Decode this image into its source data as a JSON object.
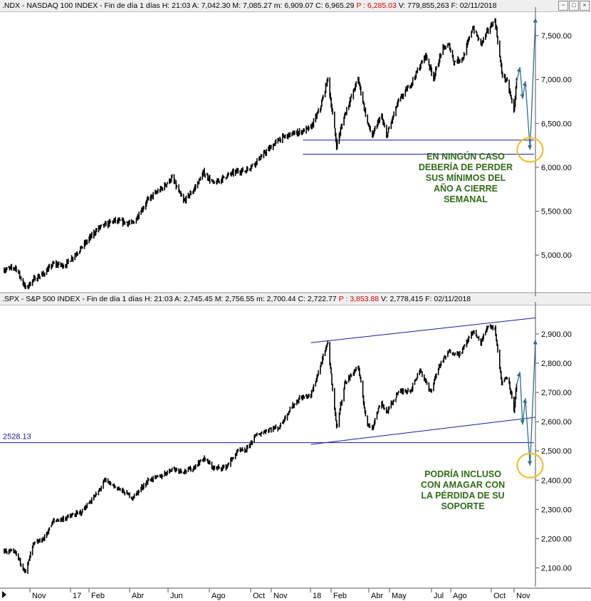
{
  "top_panel": {
    "header": {
      "symbol": ".NDX - NASDAQ 100 INDEX - Fin de día 1 días",
      "h": "H: 21:03",
      "a": "A: 7,042.30",
      "m": "M: 7,085.27",
      "low": "m: 6,909.07",
      "c": "C: 6,965.29",
      "p": "P : 6,285.03",
      "v": "V: 779,855,263",
      "f": "F: 02/11/2018"
    },
    "annotation": [
      "EN NINGÚN CASO",
      "DEBERÍA DE PERDER",
      "SUS MÍNIMOS DEL",
      "AÑO A CIERRE",
      "SEMANAL"
    ]
  },
  "bottom_panel": {
    "header": {
      "symbol": ".SPX - S&P 500 INDEX - Fin de día 1 días",
      "h": "H: 21:03",
      "a": "A: 2,745.45",
      "m": "M: 2,756.55",
      "low": "m: 2,700.44",
      "c": "C: 2,722.77",
      "p": "P : 3,853.88",
      "v": "V: 2,778,415",
      "f": "F: 02/11/2018"
    },
    "support_label": "2528.13",
    "annotation": [
      "PODRÍA INCLUSO",
      "CON AMAGAR CON",
      "LA PÉRDIDA DE SU",
      "SOPORTE"
    ]
  },
  "window_buttons": [
    "−",
    "□",
    "×"
  ],
  "x_axis": {
    "ticks": [
      "Nov",
      "17",
      "Feb",
      "Abr",
      "Jun",
      "Ago",
      "Oct",
      "Nov",
      "18",
      "Feb",
      "Abr",
      "May",
      "Jul",
      "Ago",
      "Oct",
      "Nov"
    ]
  },
  "colors": {
    "price": "#000000",
    "trendline": "#1a1aa0",
    "arrow": "#2f6f8a",
    "circle": "#f0c030",
    "annotation": "#2e6b16",
    "header_bg": "#efefef",
    "highlight": "#d40000"
  },
  "chart_data": [
    {
      "type": "line",
      "title": ".NDX - NASDAQ 100 INDEX",
      "ylim": [
        4580,
        7760
      ],
      "yticks": [
        "5,000.00",
        "5,500.00",
        "6,000.00",
        "6,500.00",
        "7,000.00",
        "7,500.00"
      ],
      "ytick_values": [
        5000,
        5500,
        6000,
        6500,
        7000,
        7500
      ],
      "x_range": [
        "2016-10-01",
        "2018-11-30"
      ],
      "support_levels": [
        6310,
        6150
      ],
      "series": [
        {
          "values_anchor": [
            [
              "2016-10-01",
              4830
            ],
            [
              "2016-10-20",
              4860
            ],
            [
              "2016-11-04",
              4620
            ],
            [
              "2016-11-15",
              4720
            ],
            [
              "2016-12-01",
              4790
            ],
            [
              "2016-12-15",
              4900
            ],
            [
              "2017-01-01",
              4880
            ],
            [
              "2017-01-25",
              5080
            ],
            [
              "2017-02-20",
              5310
            ],
            [
              "2017-03-15",
              5390
            ],
            [
              "2017-04-12",
              5360
            ],
            [
              "2017-05-05",
              5640
            ],
            [
              "2017-05-25",
              5760
            ],
            [
              "2017-06-09",
              5880
            ],
            [
              "2017-06-26",
              5610
            ],
            [
              "2017-07-10",
              5730
            ],
            [
              "2017-07-26",
              5940
            ],
            [
              "2017-08-10",
              5810
            ],
            [
              "2017-08-28",
              5900
            ],
            [
              "2017-09-15",
              5960
            ],
            [
              "2017-09-26",
              5960
            ],
            [
              "2017-10-10",
              6050
            ],
            [
              "2017-10-31",
              6210
            ],
            [
              "2017-11-15",
              6320
            ],
            [
              "2017-11-30",
              6370
            ],
            [
              "2017-12-15",
              6400
            ],
            [
              "2018-01-01",
              6450
            ],
            [
              "2018-01-15",
              6680
            ],
            [
              "2018-01-26",
              7010
            ],
            [
              "2018-02-08",
              6250
            ],
            [
              "2018-02-20",
              6600
            ],
            [
              "2018-03-12",
              7010
            ],
            [
              "2018-03-25",
              6530
            ],
            [
              "2018-04-02",
              6350
            ],
            [
              "2018-04-15",
              6600
            ],
            [
              "2018-04-23",
              6350
            ],
            [
              "2018-05-10",
              6740
            ],
            [
              "2018-05-30",
              6960
            ],
            [
              "2018-06-20",
              7280
            ],
            [
              "2018-07-02",
              7020
            ],
            [
              "2018-07-15",
              7350
            ],
            [
              "2018-07-25",
              7390
            ],
            [
              "2018-08-01",
              7200
            ],
            [
              "2018-08-15",
              7250
            ],
            [
              "2018-08-29",
              7600
            ],
            [
              "2018-09-10",
              7400
            ],
            [
              "2018-09-20",
              7550
            ],
            [
              "2018-10-01",
              7680
            ],
            [
              "2018-10-11",
              7080
            ],
            [
              "2018-10-20",
              6950
            ],
            [
              "2018-10-29",
              6640
            ],
            [
              "2018-11-02",
              6970
            ]
          ]
        }
      ],
      "projection": [
        [
          "2018-11-02",
          6970
        ],
        [
          "2018-11-07",
          7140
        ],
        [
          "2018-11-11",
          6780
        ],
        [
          "2018-11-15",
          6980
        ],
        [
          "2018-11-22",
          6200
        ],
        [
          "2018-11-30",
          7700
        ]
      ]
    },
    {
      "type": "line",
      "title": ".SPX - S&P 500 INDEX",
      "ylim": [
        2050,
        2990
      ],
      "yticks": [
        "2,100.00",
        "2,200.00",
        "2,300.00",
        "2,400.00",
        "2,500.00",
        "2,600.00",
        "2,700.00",
        "2,800.00",
        "2,900.00"
      ],
      "ytick_values": [
        2100,
        2200,
        2300,
        2400,
        2500,
        2600,
        2700,
        2800,
        2900
      ],
      "x_range": [
        "2016-10-01",
        "2018-11-30"
      ],
      "support_levels": [
        2528.13
      ],
      "channel": {
        "upper": [
          [
            "2018-01-01",
            2870
          ],
          [
            "2018-11-30",
            2955
          ]
        ],
        "lower": [
          [
            "2018-01-01",
            2522
          ],
          [
            "2018-11-30",
            2615
          ]
        ]
      },
      "series": [
        {
          "values_anchor": [
            [
              "2016-10-01",
              2160
            ],
            [
              "2016-10-20",
              2150
            ],
            [
              "2016-11-04",
              2085
            ],
            [
              "2016-11-15",
              2180
            ],
            [
              "2016-12-01",
              2200
            ],
            [
              "2016-12-15",
              2260
            ],
            [
              "2017-01-01",
              2270
            ],
            [
              "2017-01-25",
              2290
            ],
            [
              "2017-02-20",
              2360
            ],
            [
              "2017-03-01",
              2400
            ],
            [
              "2017-03-15",
              2380
            ],
            [
              "2017-04-12",
              2340
            ],
            [
              "2017-05-05",
              2400
            ],
            [
              "2017-05-25",
              2415
            ],
            [
              "2017-06-09",
              2440
            ],
            [
              "2017-06-26",
              2430
            ],
            [
              "2017-07-10",
              2440
            ],
            [
              "2017-07-26",
              2475
            ],
            [
              "2017-08-10",
              2440
            ],
            [
              "2017-08-28",
              2445
            ],
            [
              "2017-09-15",
              2500
            ],
            [
              "2017-09-26",
              2500
            ],
            [
              "2017-10-10",
              2550
            ],
            [
              "2017-10-31",
              2575
            ],
            [
              "2017-11-15",
              2580
            ],
            [
              "2017-11-30",
              2640
            ],
            [
              "2017-12-15",
              2680
            ],
            [
              "2018-01-01",
              2690
            ],
            [
              "2018-01-15",
              2790
            ],
            [
              "2018-01-26",
              2870
            ],
            [
              "2018-02-08",
              2580
            ],
            [
              "2018-02-20",
              2730
            ],
            [
              "2018-03-12",
              2790
            ],
            [
              "2018-03-25",
              2590
            ],
            [
              "2018-04-02",
              2580
            ],
            [
              "2018-04-15",
              2670
            ],
            [
              "2018-04-23",
              2630
            ],
            [
              "2018-05-10",
              2700
            ],
            [
              "2018-05-30",
              2710
            ],
            [
              "2018-06-12",
              2780
            ],
            [
              "2018-06-27",
              2700
            ],
            [
              "2018-07-10",
              2790
            ],
            [
              "2018-07-25",
              2840
            ],
            [
              "2018-08-10",
              2830
            ],
            [
              "2018-08-29",
              2910
            ],
            [
              "2018-09-10",
              2870
            ],
            [
              "2018-09-21",
              2930
            ],
            [
              "2018-10-01",
              2920
            ],
            [
              "2018-10-11",
              2730
            ],
            [
              "2018-10-20",
              2760
            ],
            [
              "2018-10-29",
              2640
            ],
            [
              "2018-11-02",
              2725
            ]
          ]
        }
      ],
      "projection": [
        [
          "2018-11-02",
          2725
        ],
        [
          "2018-11-07",
          2770
        ],
        [
          "2018-11-11",
          2590
        ],
        [
          "2018-11-15",
          2680
        ],
        [
          "2018-11-22",
          2450
        ],
        [
          "2018-11-30",
          2880
        ]
      ]
    }
  ]
}
